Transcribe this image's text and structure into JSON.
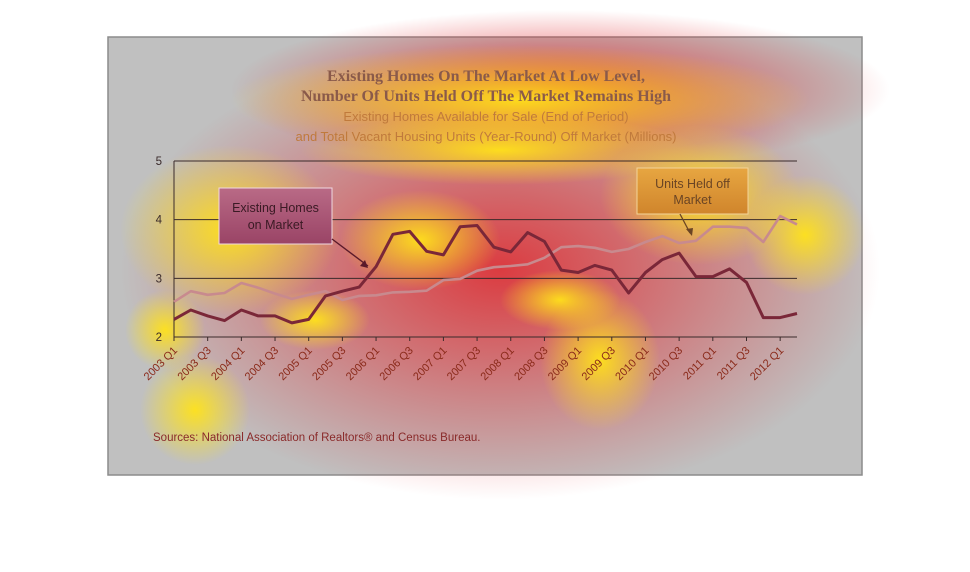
{
  "chart_data": {
    "type": "line",
    "title_lines": [
      "Existing Homes On The Market At Low Level,",
      "Number Of Units Held Off The Market Remains High"
    ],
    "subtitle_lines": [
      "Existing Homes Available for Sale (End of Period)",
      "and Total Vacant Housing Units (Year-Round) Off Market (Millions)"
    ],
    "quarters": [
      "2003 Q1",
      "2003 Q2",
      "2003 Q3",
      "2003 Q4",
      "2004 Q1",
      "2004 Q2",
      "2004 Q3",
      "2004 Q4",
      "2005 Q1",
      "2005 Q2",
      "2005 Q3",
      "2005 Q4",
      "2006 Q1",
      "2006 Q2",
      "2006 Q3",
      "2006 Q4",
      "2007 Q1",
      "2007 Q2",
      "2007 Q3",
      "2007 Q4",
      "2008 Q1",
      "2008 Q2",
      "2008 Q3",
      "2008 Q4",
      "2009 Q1",
      "2009 Q2",
      "2009 Q3",
      "2009 Q4",
      "2010 Q1",
      "2010 Q2",
      "2010 Q3",
      "2010 Q4",
      "2011 Q1",
      "2011 Q2",
      "2011 Q3",
      "2011 Q4",
      "2012 Q1",
      "2012 Q2"
    ],
    "tick_labels": [
      "2003 Q1",
      "2003 Q3",
      "2004 Q1",
      "2004 Q3",
      "2005 Q1",
      "2005 Q3",
      "2006 Q1",
      "2006 Q3",
      "2007 Q1",
      "2007 Q3",
      "2008 Q1",
      "2008 Q3",
      "2009 Q1",
      "2009 Q3",
      "2010 Q1",
      "2010 Q3",
      "2011 Q1",
      "2011 Q3",
      "2012 Q1"
    ],
    "ylim": [
      2,
      5
    ],
    "yticks": [
      "2",
      "3",
      "4",
      "5"
    ],
    "grid": true,
    "series": [
      {
        "name": "Existing Homes on Market",
        "color": "#7a2738",
        "values": [
          2.3,
          2.46,
          2.36,
          2.28,
          2.46,
          2.36,
          2.36,
          2.24,
          2.3,
          2.7,
          2.78,
          2.85,
          3.2,
          3.75,
          3.8,
          3.46,
          3.4,
          3.88,
          3.9,
          3.53,
          3.45,
          3.78,
          3.63,
          3.14,
          3.1,
          3.22,
          3.14,
          2.75,
          3.1,
          3.32,
          3.43,
          3.03,
          3.03,
          3.16,
          2.93,
          2.33,
          2.33,
          2.4
        ]
      },
      {
        "name": "Units Held off Market",
        "color": "#c88a8e",
        "values": [
          2.6,
          2.78,
          2.72,
          2.75,
          2.92,
          2.84,
          2.74,
          2.65,
          2.72,
          2.78,
          2.63,
          2.7,
          2.71,
          2.76,
          2.77,
          2.79,
          2.97,
          2.99,
          3.13,
          3.19,
          3.21,
          3.24,
          3.35,
          3.53,
          3.55,
          3.52,
          3.45,
          3.5,
          3.62,
          3.72,
          3.6,
          3.64,
          3.88,
          3.88,
          3.86,
          3.62,
          4.06,
          3.92
        ]
      }
    ],
    "annotations": [
      {
        "series": 0,
        "lines": [
          "Existing Homes",
          "on Market"
        ]
      },
      {
        "series": 1,
        "lines": [
          "Units Held off",
          "Market"
        ]
      }
    ],
    "source": "Sources: National Association of Realtors® and Census Bureau."
  },
  "colors": {
    "heat_hot": "#e0242a",
    "heat_warm": "#ffe21a",
    "frame_bg": "#c0c0c0"
  }
}
